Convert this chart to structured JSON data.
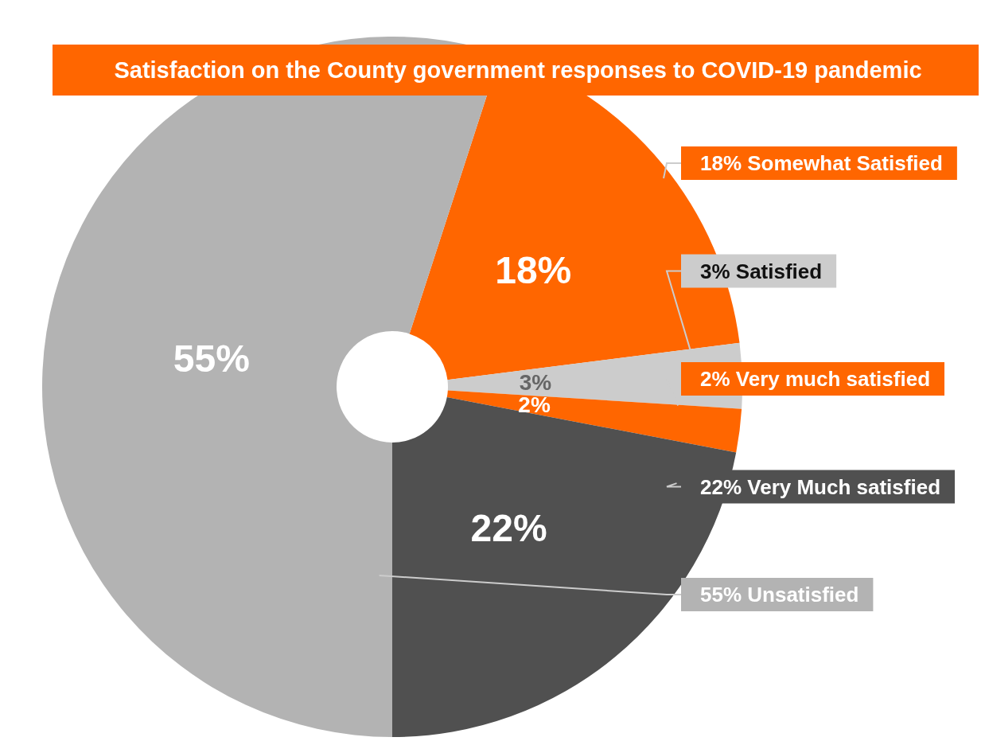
{
  "chart_data": {
    "type": "donut",
    "title": "Satisfaction on the County government responses to COVID-19 pandemic",
    "categories": [
      "Somewhat Satisfied",
      "Satisfied",
      "Very much satisfied",
      "Very Much satisfied",
      "Unsatisfied"
    ],
    "values": [
      18,
      3,
      2,
      22,
      55
    ],
    "value_labels": [
      "18%",
      "3%",
      "2%",
      "22%",
      "55%"
    ],
    "colors": [
      "#ff6600",
      "#cccccc",
      "#ff6600",
      "#505050",
      "#b3b3b3"
    ],
    "data_labels": true,
    "legend": false
  }
}
